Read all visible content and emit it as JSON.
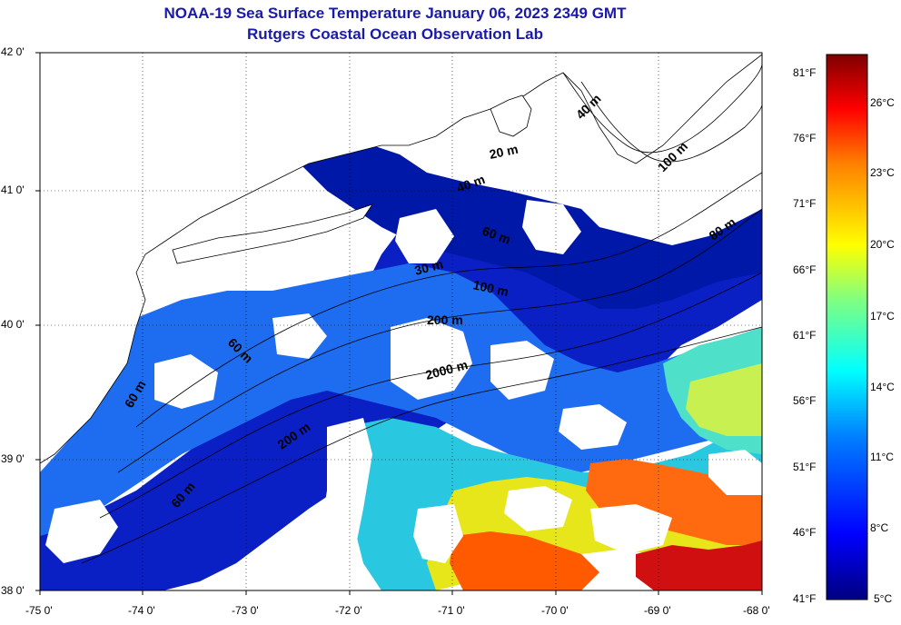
{
  "title": "NOAA-19 Sea Surface Temperature January 06, 2023 2349 GMT",
  "subtitle": "Rutgers Coastal Ocean Observation Lab",
  "lat_labels": [
    "42 0'",
    "41 0'",
    "40 0'",
    "39 0'",
    "38 0'"
  ],
  "lon_labels": [
    "-75 0'",
    "-74 0'",
    "-73 0'",
    "-72 0'",
    "-71 0'",
    "-70 0'",
    "-69 0'",
    "-68 0'"
  ],
  "contour_labels": [
    "20 m",
    "40 m",
    "60 m",
    "30 m",
    "100 m",
    "200 m",
    "2000 m",
    "40 m",
    "100 m",
    "60 m",
    "200 m",
    "60 m",
    "60 m",
    "80 m"
  ],
  "colorbar": {
    "fahrenheit": [
      "81°F",
      "76°F",
      "71°F",
      "66°F",
      "61°F",
      "56°F",
      "51°F",
      "46°F",
      "41°F"
    ],
    "celsius": [
      "26°C",
      "23°C",
      "20°C",
      "17°C",
      "14°C",
      "11°C",
      "8°C",
      "5°C"
    ]
  },
  "colors": {
    "title": "#1a1aa8",
    "cold": "#00108c",
    "cool": "#1a66ff",
    "mid": "#22ccdd",
    "warm": "#e8e800",
    "hot": "#ff4400",
    "hottest": "#cc0000"
  }
}
